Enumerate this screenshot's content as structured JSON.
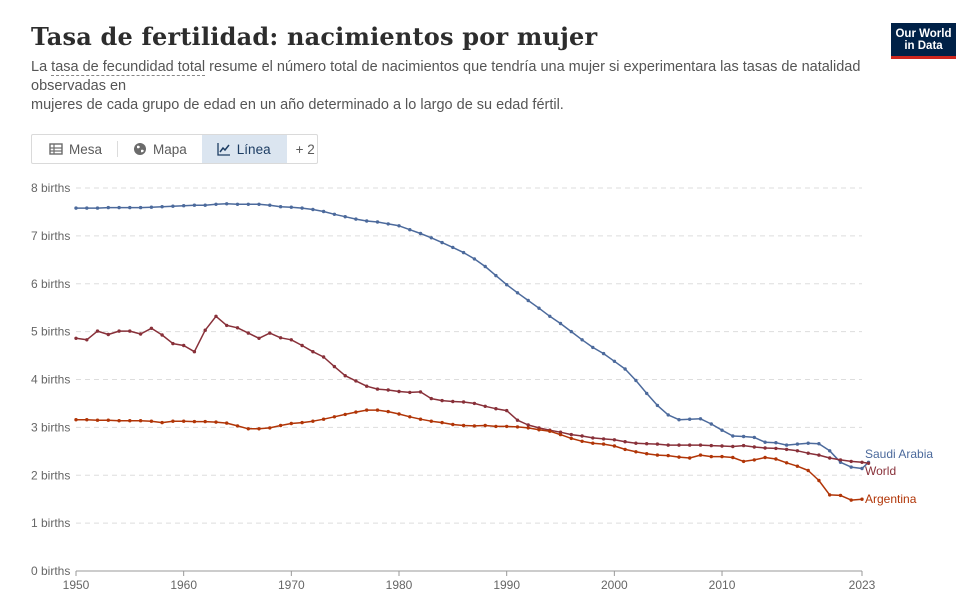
{
  "header": {
    "title": "Tasa de fertilidad: nacimientos por mujer",
    "subtitle_pre": "La ",
    "subtitle_term": "tasa de fecundidad total",
    "subtitle_line1_rest": " resume el número total de nacimientos que tendría una mujer si experimentara las tasas de natalidad observadas en",
    "subtitle_line2": "mujeres de cada grupo de edad en un año determinado a lo largo de su edad fértil."
  },
  "logo": {
    "line1": "Our World",
    "line2": "in Data"
  },
  "tabs": [
    {
      "label": "Mesa",
      "icon": "table-icon"
    },
    {
      "label": "Mapa",
      "icon": "globe-icon"
    },
    {
      "label": "Línea",
      "icon": "line-chart-icon",
      "active": true
    },
    {
      "label": "+ 2"
    }
  ],
  "colors": {
    "saudi": "#4c6a9c",
    "world": "#883039",
    "argentina": "#b13507",
    "grid": "#dddddd"
  },
  "chart_data": {
    "type": "line",
    "title": "Tasa de fertilidad: nacimientos por mujer",
    "ylim": [
      0,
      8
    ],
    "xlim": [
      1950,
      2023
    ],
    "y_ticks": [
      0,
      1,
      2,
      3,
      4,
      5,
      6,
      7,
      8
    ],
    "y_tick_labels": [
      "0 births",
      "1 births",
      "2 births",
      "3 births",
      "4 births",
      "5 births",
      "6 births",
      "7 births",
      "8 births"
    ],
    "x_ticks": [
      1950,
      1960,
      1970,
      1980,
      1990,
      2000,
      2010,
      2023
    ],
    "grid": "horizontal dashed",
    "legend": "inline labels at line ends (right)",
    "series": [
      {
        "name": "Saudi Arabia",
        "color": "#4c6a9c",
        "points": [
          [
            1950,
            7.58
          ],
          [
            1951,
            7.58
          ],
          [
            1952,
            7.58
          ],
          [
            1953,
            7.59
          ],
          [
            1954,
            7.59
          ],
          [
            1955,
            7.59
          ],
          [
            1956,
            7.59
          ],
          [
            1957,
            7.6
          ],
          [
            1958,
            7.61
          ],
          [
            1959,
            7.62
          ],
          [
            1960,
            7.63
          ],
          [
            1961,
            7.64
          ],
          [
            1962,
            7.64
          ],
          [
            1963,
            7.66
          ],
          [
            1964,
            7.67
          ],
          [
            1965,
            7.66
          ],
          [
            1966,
            7.66
          ],
          [
            1967,
            7.66
          ],
          [
            1968,
            7.64
          ],
          [
            1969,
            7.61
          ],
          [
            1970,
            7.6
          ],
          [
            1971,
            7.58
          ],
          [
            1972,
            7.55
          ],
          [
            1973,
            7.51
          ],
          [
            1974,
            7.45
          ],
          [
            1975,
            7.4
          ],
          [
            1976,
            7.35
          ],
          [
            1977,
            7.31
          ],
          [
            1978,
            7.29
          ],
          [
            1979,
            7.25
          ],
          [
            1980,
            7.21
          ],
          [
            1981,
            7.13
          ],
          [
            1982,
            7.05
          ],
          [
            1983,
            6.96
          ],
          [
            1984,
            6.86
          ],
          [
            1985,
            6.76
          ],
          [
            1986,
            6.65
          ],
          [
            1987,
            6.52
          ],
          [
            1988,
            6.36
          ],
          [
            1989,
            6.17
          ],
          [
            1990,
            5.98
          ],
          [
            1991,
            5.81
          ],
          [
            1992,
            5.65
          ],
          [
            1993,
            5.49
          ],
          [
            1994,
            5.32
          ],
          [
            1995,
            5.17
          ],
          [
            1996,
            5.0
          ],
          [
            1997,
            4.83
          ],
          [
            1998,
            4.67
          ],
          [
            1999,
            4.54
          ],
          [
            2000,
            4.38
          ],
          [
            2001,
            4.22
          ],
          [
            2002,
            3.98
          ],
          [
            2003,
            3.71
          ],
          [
            2004,
            3.46
          ],
          [
            2005,
            3.26
          ],
          [
            2006,
            3.16
          ],
          [
            2007,
            3.17
          ],
          [
            2008,
            3.18
          ],
          [
            2009,
            3.07
          ],
          [
            2010,
            2.94
          ],
          [
            2011,
            2.82
          ],
          [
            2012,
            2.81
          ],
          [
            2013,
            2.79
          ],
          [
            2014,
            2.69
          ],
          [
            2015,
            2.68
          ],
          [
            2016,
            2.63
          ],
          [
            2017,
            2.65
          ],
          [
            2018,
            2.67
          ],
          [
            2019,
            2.66
          ],
          [
            2020,
            2.51
          ],
          [
            2021,
            2.27
          ],
          [
            2022,
            2.17
          ],
          [
            2023,
            2.14
          ],
          [
            2023.6,
            2.27
          ]
        ]
      },
      {
        "name": "World",
        "color": "#883039",
        "points": [
          [
            1950,
            4.86
          ],
          [
            1951,
            4.83
          ],
          [
            1952,
            5.01
          ],
          [
            1953,
            4.94
          ],
          [
            1954,
            5.01
          ],
          [
            1955,
            5.01
          ],
          [
            1956,
            4.95
          ],
          [
            1957,
            5.07
          ],
          [
            1958,
            4.93
          ],
          [
            1959,
            4.75
          ],
          [
            1960,
            4.71
          ],
          [
            1961,
            4.58
          ],
          [
            1962,
            5.03
          ],
          [
            1963,
            5.32
          ],
          [
            1964,
            5.13
          ],
          [
            1965,
            5.08
          ],
          [
            1966,
            4.97
          ],
          [
            1967,
            4.86
          ],
          [
            1968,
            4.97
          ],
          [
            1969,
            4.87
          ],
          [
            1970,
            4.83
          ],
          [
            1971,
            4.71
          ],
          [
            1972,
            4.58
          ],
          [
            1973,
            4.47
          ],
          [
            1974,
            4.27
          ],
          [
            1975,
            4.08
          ],
          [
            1976,
            3.97
          ],
          [
            1977,
            3.86
          ],
          [
            1978,
            3.8
          ],
          [
            1979,
            3.78
          ],
          [
            1980,
            3.75
          ],
          [
            1981,
            3.73
          ],
          [
            1982,
            3.74
          ],
          [
            1983,
            3.6
          ],
          [
            1984,
            3.56
          ],
          [
            1985,
            3.54
          ],
          [
            1986,
            3.53
          ],
          [
            1987,
            3.5
          ],
          [
            1988,
            3.44
          ],
          [
            1989,
            3.39
          ],
          [
            1990,
            3.35
          ],
          [
            1991,
            3.15
          ],
          [
            1992,
            3.05
          ],
          [
            1993,
            2.99
          ],
          [
            1994,
            2.94
          ],
          [
            1995,
            2.9
          ],
          [
            1996,
            2.85
          ],
          [
            1997,
            2.82
          ],
          [
            1998,
            2.78
          ],
          [
            1999,
            2.76
          ],
          [
            2000,
            2.74
          ],
          [
            2001,
            2.7
          ],
          [
            2002,
            2.67
          ],
          [
            2003,
            2.66
          ],
          [
            2004,
            2.65
          ],
          [
            2005,
            2.63
          ],
          [
            2006,
            2.63
          ],
          [
            2007,
            2.63
          ],
          [
            2008,
            2.63
          ],
          [
            2009,
            2.62
          ],
          [
            2010,
            2.61
          ],
          [
            2011,
            2.6
          ],
          [
            2012,
            2.62
          ],
          [
            2013,
            2.59
          ],
          [
            2014,
            2.57
          ],
          [
            2015,
            2.56
          ],
          [
            2016,
            2.54
          ],
          [
            2017,
            2.51
          ],
          [
            2018,
            2.46
          ],
          [
            2019,
            2.42
          ],
          [
            2020,
            2.36
          ],
          [
            2021,
            2.32
          ],
          [
            2022,
            2.29
          ],
          [
            2023,
            2.27
          ],
          [
            2023.6,
            2.25
          ]
        ]
      },
      {
        "name": "Argentina",
        "color": "#b13507",
        "points": [
          [
            1950,
            3.16
          ],
          [
            1951,
            3.16
          ],
          [
            1952,
            3.15
          ],
          [
            1953,
            3.15
          ],
          [
            1954,
            3.14
          ],
          [
            1955,
            3.14
          ],
          [
            1956,
            3.14
          ],
          [
            1957,
            3.13
          ],
          [
            1958,
            3.1
          ],
          [
            1959,
            3.13
          ],
          [
            1960,
            3.13
          ],
          [
            1961,
            3.12
          ],
          [
            1962,
            3.12
          ],
          [
            1963,
            3.11
          ],
          [
            1964,
            3.09
          ],
          [
            1965,
            3.03
          ],
          [
            1966,
            2.97
          ],
          [
            1967,
            2.97
          ],
          [
            1968,
            2.99
          ],
          [
            1969,
            3.04
          ],
          [
            1970,
            3.08
          ],
          [
            1971,
            3.1
          ],
          [
            1972,
            3.13
          ],
          [
            1973,
            3.17
          ],
          [
            1974,
            3.22
          ],
          [
            1975,
            3.27
          ],
          [
            1976,
            3.32
          ],
          [
            1977,
            3.36
          ],
          [
            1978,
            3.36
          ],
          [
            1979,
            3.33
          ],
          [
            1980,
            3.28
          ],
          [
            1981,
            3.22
          ],
          [
            1982,
            3.17
          ],
          [
            1983,
            3.13
          ],
          [
            1984,
            3.1
          ],
          [
            1985,
            3.06
          ],
          [
            1986,
            3.04
          ],
          [
            1987,
            3.03
          ],
          [
            1988,
            3.04
          ],
          [
            1989,
            3.02
          ],
          [
            1990,
            3.02
          ],
          [
            1991,
            3.01
          ],
          [
            1992,
            2.99
          ],
          [
            1993,
            2.95
          ],
          [
            1994,
            2.92
          ],
          [
            1995,
            2.85
          ],
          [
            1996,
            2.77
          ],
          [
            1997,
            2.71
          ],
          [
            1998,
            2.67
          ],
          [
            1999,
            2.65
          ],
          [
            2000,
            2.61
          ],
          [
            2001,
            2.54
          ],
          [
            2002,
            2.49
          ],
          [
            2003,
            2.45
          ],
          [
            2004,
            2.42
          ],
          [
            2005,
            2.41
          ],
          [
            2006,
            2.38
          ],
          [
            2007,
            2.36
          ],
          [
            2008,
            2.42
          ],
          [
            2009,
            2.39
          ],
          [
            2010,
            2.39
          ],
          [
            2011,
            2.37
          ],
          [
            2012,
            2.29
          ],
          [
            2013,
            2.32
          ],
          [
            2014,
            2.37
          ],
          [
            2015,
            2.34
          ],
          [
            2016,
            2.26
          ],
          [
            2017,
            2.19
          ],
          [
            2018,
            2.1
          ],
          [
            2019,
            1.89
          ],
          [
            2020,
            1.59
          ],
          [
            2021,
            1.58
          ],
          [
            2022,
            1.48
          ],
          [
            2023,
            1.5
          ]
        ]
      }
    ]
  }
}
